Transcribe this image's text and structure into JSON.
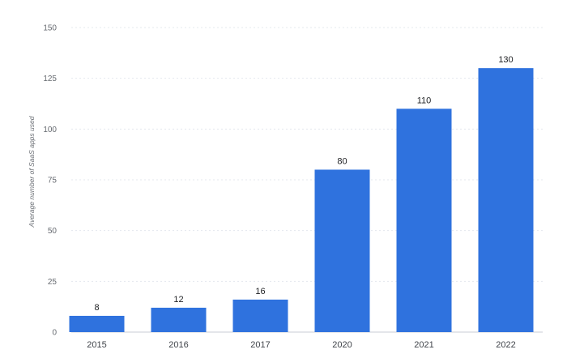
{
  "chart_data": {
    "type": "bar",
    "categories": [
      "2015",
      "2016",
      "2017",
      "2020",
      "2021",
      "2022"
    ],
    "values": [
      8,
      12,
      16,
      80,
      110,
      130
    ],
    "title": "",
    "xlabel": "",
    "ylabel": "Average number of SaaS apps used",
    "ylim": [
      0,
      150
    ],
    "yticks": [
      0,
      25,
      50,
      75,
      100,
      125,
      150
    ],
    "grid": true,
    "data_labels": true,
    "bar_color": "#2f72de"
  }
}
